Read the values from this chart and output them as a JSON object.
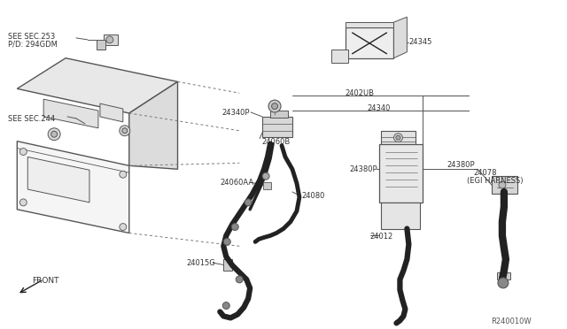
{
  "bg_color": "#ffffff",
  "line_color": "#555555",
  "dark": "#222222",
  "ref_code": "R240010W",
  "labels": {
    "see_sec_253": "SEE SEC.253",
    "pd_294gdm": "P/D: 294GDM",
    "see_sec_244": "SEE SEC.244",
    "front": "FRONT",
    "part_24345": "24345",
    "part_2402ub": "2402UB",
    "part_24340": "24340",
    "part_24340p": "24340P",
    "part_24060b": "24060B",
    "part_24380p": "24380P",
    "part_24078": "24078",
    "egi_harness": "(EGI HARNESS)",
    "part_24060aa": "24060AA",
    "part_24080": "24080",
    "part_24012": "24012",
    "part_24015g": "24015G"
  }
}
